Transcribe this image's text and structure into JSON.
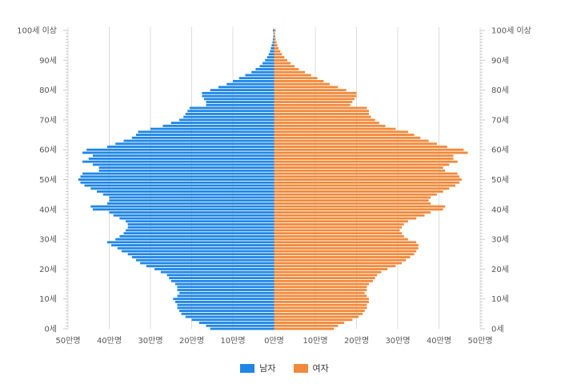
{
  "chart_data": {
    "type": "bar",
    "orientation": "horizontal-population-pyramid",
    "unit": "만명",
    "xlim": [
      -50,
      50
    ],
    "x_ticks": [
      "50만명",
      "40만명",
      "30만명",
      "20만명",
      "10만명",
      "0만명",
      "10만명",
      "20만명",
      "30만명",
      "40만명",
      "50만명"
    ],
    "y_ticks": [
      "0세",
      "10세",
      "20세",
      "30세",
      "40세",
      "50세",
      "60세",
      "70세",
      "80세",
      "90세",
      "100세 이상"
    ],
    "grid": true,
    "legend_position": "bottom",
    "categories": [
      "0세",
      "1세",
      "2세",
      "3세",
      "4세",
      "5세",
      "6세",
      "7세",
      "8세",
      "9세",
      "10세",
      "11세",
      "12세",
      "13세",
      "14세",
      "15세",
      "16세",
      "17세",
      "18세",
      "19세",
      "20세",
      "21세",
      "22세",
      "23세",
      "24세",
      "25세",
      "26세",
      "27세",
      "28세",
      "29세",
      "30세",
      "31세",
      "32세",
      "33세",
      "34세",
      "35세",
      "36세",
      "37세",
      "38세",
      "39세",
      "40세",
      "41세",
      "42세",
      "43세",
      "44세",
      "45세",
      "46세",
      "47세",
      "48세",
      "49세",
      "50세",
      "51세",
      "52세",
      "53세",
      "54세",
      "55세",
      "56세",
      "57세",
      "58세",
      "59세",
      "60세",
      "61세",
      "62세",
      "63세",
      "64세",
      "65세",
      "66세",
      "67세",
      "68세",
      "69세",
      "70세",
      "71세",
      "72세",
      "73세",
      "74세",
      "75세",
      "76세",
      "77세",
      "78세",
      "79세",
      "80세",
      "81세",
      "82세",
      "83세",
      "84세",
      "85세",
      "86세",
      "87세",
      "88세",
      "89세",
      "90세",
      "91세",
      "92세",
      "93세",
      "94세",
      "95세",
      "96세",
      "97세",
      "98세",
      "99세",
      "100세 이상"
    ],
    "series": [
      {
        "name": "남자",
        "color": "#1f86e6",
        "values": [
          15.5,
          16.5,
          18.2,
          20.0,
          21.5,
          22.5,
          23.0,
          23.5,
          23.5,
          24.0,
          24.5,
          23.5,
          23.0,
          23.5,
          23.5,
          24.0,
          25.0,
          25.5,
          26.0,
          27.5,
          29.0,
          31.0,
          32.5,
          33.5,
          34.5,
          35.5,
          37.0,
          38.0,
          39.5,
          40.5,
          38.5,
          37.5,
          36.5,
          36.0,
          35.5,
          35.5,
          36.0,
          37.5,
          39.0,
          40.0,
          44.0,
          44.5,
          40.5,
          40.0,
          40.0,
          41.5,
          43.0,
          44.5,
          46.0,
          47.0,
          47.5,
          47.0,
          46.5,
          42.5,
          42.5,
          44.0,
          46.5,
          45.0,
          44.0,
          46.5,
          45.5,
          40.5,
          38.5,
          36.5,
          34.5,
          33.5,
          33.0,
          30.0,
          27.0,
          25.0,
          23.0,
          22.0,
          21.5,
          21.0,
          20.5,
          16.5,
          16.5,
          17.0,
          17.5,
          17.5,
          15.5,
          13.5,
          11.5,
          10.0,
          8.5,
          7.0,
          5.5,
          4.5,
          3.5,
          2.8,
          2.2,
          1.7,
          1.3,
          1.0,
          0.8,
          0.6,
          0.4,
          0.3,
          0.2,
          0.15,
          0.3
        ]
      },
      {
        "name": "여자",
        "color": "#f2893a",
        "values": [
          14.5,
          15.5,
          17.0,
          19.0,
          20.5,
          21.5,
          22.0,
          22.5,
          22.5,
          23.0,
          23.0,
          22.5,
          22.0,
          22.5,
          22.5,
          23.0,
          24.0,
          24.5,
          25.0,
          26.0,
          27.5,
          29.5,
          31.0,
          32.0,
          33.0,
          34.0,
          34.5,
          35.0,
          35.0,
          34.5,
          32.5,
          31.5,
          31.0,
          30.5,
          31.0,
          31.5,
          32.5,
          34.5,
          36.5,
          38.0,
          41.0,
          41.5,
          38.0,
          37.5,
          38.0,
          39.5,
          41.0,
          42.5,
          44.0,
          45.0,
          45.5,
          45.0,
          44.5,
          41.5,
          41.0,
          42.5,
          44.5,
          43.5,
          43.5,
          47.0,
          46.0,
          42.0,
          39.5,
          37.5,
          35.5,
          34.0,
          32.5,
          29.5,
          27.0,
          25.5,
          24.5,
          23.5,
          23.0,
          23.0,
          22.5,
          18.5,
          19.0,
          19.5,
          20.0,
          20.0,
          17.5,
          15.5,
          13.5,
          12.0,
          10.5,
          9.0,
          7.5,
          6.0,
          5.0,
          4.0,
          3.2,
          2.5,
          1.9,
          1.5,
          1.1,
          0.8,
          0.6,
          0.4,
          0.3,
          0.2,
          0.4
        ]
      }
    ]
  }
}
